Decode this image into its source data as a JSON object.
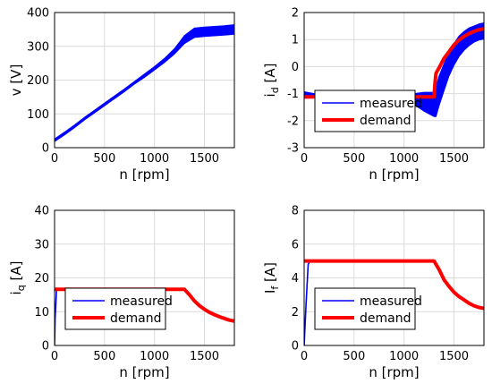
{
  "chart_data": [
    {
      "type": "line",
      "xlabel": "n [rpm]",
      "ylabel": "v [V]",
      "xlim": [
        0,
        1800
      ],
      "ylim": [
        0,
        400
      ],
      "xticks": [
        "0",
        "500",
        "1000",
        "1500"
      ],
      "yticks": [
        "0",
        "100",
        "200",
        "300",
        "400"
      ],
      "grid": true,
      "legend": null,
      "series": [
        {
          "name": "",
          "color": "#0000ff",
          "x": [
            0,
            100,
            200,
            300,
            400,
            500,
            600,
            700,
            800,
            900,
            1000,
            1100,
            1200,
            1300,
            1400,
            1500,
            1600,
            1700,
            1800
          ],
          "y": [
            22,
            42,
            63,
            86,
            107,
            128,
            149,
            170,
            192,
            213,
            235,
            258,
            285,
            320,
            340,
            343,
            345,
            347,
            350
          ],
          "band": [
            4,
            4,
            4,
            4,
            4,
            4,
            4,
            4,
            4,
            5,
            5,
            6,
            8,
            12,
            14,
            14,
            14,
            14,
            14
          ]
        }
      ]
    },
    {
      "type": "line",
      "xlabel": "n [rpm]",
      "ylabel": "i_d [A]",
      "xlim": [
        0,
        1800
      ],
      "ylim": [
        -3,
        2
      ],
      "xticks": [
        "0",
        "500",
        "1000",
        "1500"
      ],
      "yticks": [
        "-3",
        "-2",
        "-1",
        "0",
        "1",
        "2"
      ],
      "grid": true,
      "legend": "lower-left",
      "series": [
        {
          "name": "measured",
          "color": "#0000ff",
          "x": [
            0,
            100,
            200,
            300,
            400,
            500,
            600,
            700,
            800,
            900,
            1000,
            1050,
            1100,
            1200,
            1300,
            1320,
            1350,
            1400,
            1450,
            1500,
            1550,
            1600,
            1650,
            1700,
            1750,
            1800
          ],
          "y": [
            -1.05,
            -1.08,
            -1.1,
            -1.1,
            -1.1,
            -1.12,
            -1.12,
            -1.12,
            -1.12,
            -1.12,
            -1.12,
            -1.12,
            -1.2,
            -1.3,
            -1.4,
            -1.3,
            -0.9,
            -0.4,
            0.1,
            0.45,
            0.75,
            0.95,
            1.1,
            1.2,
            1.28,
            1.32
          ],
          "band": [
            0.12,
            0.08,
            0.05,
            0.03,
            0.02,
            0.02,
            0.02,
            0.02,
            0.02,
            0.02,
            0.02,
            0.1,
            0.2,
            0.35,
            0.45,
            0.55,
            0.55,
            0.5,
            0.45,
            0.4,
            0.38,
            0.35,
            0.33,
            0.3,
            0.3,
            0.3
          ]
        },
        {
          "name": "demand",
          "color": "#ff0000",
          "x": [
            0,
            100,
            200,
            300,
            400,
            500,
            600,
            700,
            800,
            900,
            1000,
            1100,
            1200,
            1300,
            1310,
            1320,
            1350,
            1400,
            1450,
            1500,
            1550,
            1600,
            1650,
            1700,
            1750,
            1800
          ],
          "y": [
            -1.12,
            -1.12,
            -1.12,
            -1.12,
            -1.12,
            -1.12,
            -1.12,
            -1.12,
            -1.12,
            -1.12,
            -1.12,
            -1.12,
            -1.12,
            -1.12,
            -0.6,
            -0.25,
            -0.05,
            0.3,
            0.55,
            0.8,
            0.98,
            1.12,
            1.22,
            1.3,
            1.36,
            1.4
          ]
        }
      ]
    },
    {
      "type": "line",
      "xlabel": "n [rpm]",
      "ylabel": "i_q [A]",
      "xlim": [
        0,
        1800
      ],
      "ylim": [
        0,
        40
      ],
      "xticks": [
        "0",
        "500",
        "1000",
        "1500"
      ],
      "yticks": [
        "0",
        "10",
        "20",
        "30",
        "40"
      ],
      "grid": true,
      "legend": "lower-left",
      "series": [
        {
          "name": "measured",
          "color": "#0000ff",
          "x": [
            0,
            5,
            20,
            40,
            100,
            300,
            500,
            700,
            900,
            1100,
            1300,
            1350,
            1400,
            1450,
            1500,
            1550,
            1600,
            1650,
            1700,
            1750,
            1800
          ],
          "y": [
            0,
            8,
            16.5,
            16.6,
            16.6,
            16.6,
            16.6,
            16.6,
            16.6,
            16.6,
            16.6,
            15.2,
            13.2,
            11.8,
            10.7,
            9.8,
            9.1,
            8.5,
            8.0,
            7.5,
            7.2
          ]
        },
        {
          "name": "demand",
          "color": "#ff0000",
          "x": [
            0,
            100,
            300,
            500,
            700,
            900,
            1100,
            1300,
            1350,
            1400,
            1450,
            1500,
            1550,
            1600,
            1650,
            1700,
            1750,
            1800
          ],
          "y": [
            16.6,
            16.6,
            16.6,
            16.6,
            16.6,
            16.6,
            16.6,
            16.6,
            15.0,
            13.2,
            11.8,
            10.7,
            9.8,
            9.1,
            8.5,
            8.0,
            7.5,
            7.2
          ]
        }
      ]
    },
    {
      "type": "line",
      "xlabel": "n [rpm]",
      "ylabel": "I_f [A]",
      "xlim": [
        0,
        1800
      ],
      "ylim": [
        0,
        8
      ],
      "xticks": [
        "0",
        "500",
        "1000",
        "1500"
      ],
      "yticks": [
        "0",
        "2",
        "4",
        "6",
        "8"
      ],
      "grid": true,
      "legend": "lower-left",
      "series": [
        {
          "name": "measured",
          "color": "#0000ff",
          "x": [
            0,
            20,
            40,
            60,
            100,
            300,
            500,
            700,
            900,
            1100,
            1300,
            1350,
            1400,
            1450,
            1500,
            1550,
            1600,
            1650,
            1700,
            1750,
            1800
          ],
          "y": [
            0,
            2.5,
            4.8,
            5.0,
            5.0,
            5.0,
            5.0,
            5.0,
            5.0,
            5.0,
            5.0,
            4.5,
            3.9,
            3.5,
            3.15,
            2.9,
            2.7,
            2.5,
            2.35,
            2.25,
            2.2
          ]
        },
        {
          "name": "demand",
          "color": "#ff0000",
          "x": [
            0,
            100,
            300,
            500,
            700,
            900,
            1100,
            1300,
            1350,
            1400,
            1450,
            1500,
            1550,
            1600,
            1650,
            1700,
            1750,
            1800
          ],
          "y": [
            5.0,
            5.0,
            5.0,
            5.0,
            5.0,
            5.0,
            5.0,
            5.0,
            4.5,
            3.9,
            3.5,
            3.15,
            2.9,
            2.7,
            2.5,
            2.35,
            2.25,
            2.2
          ]
        }
      ]
    }
  ]
}
